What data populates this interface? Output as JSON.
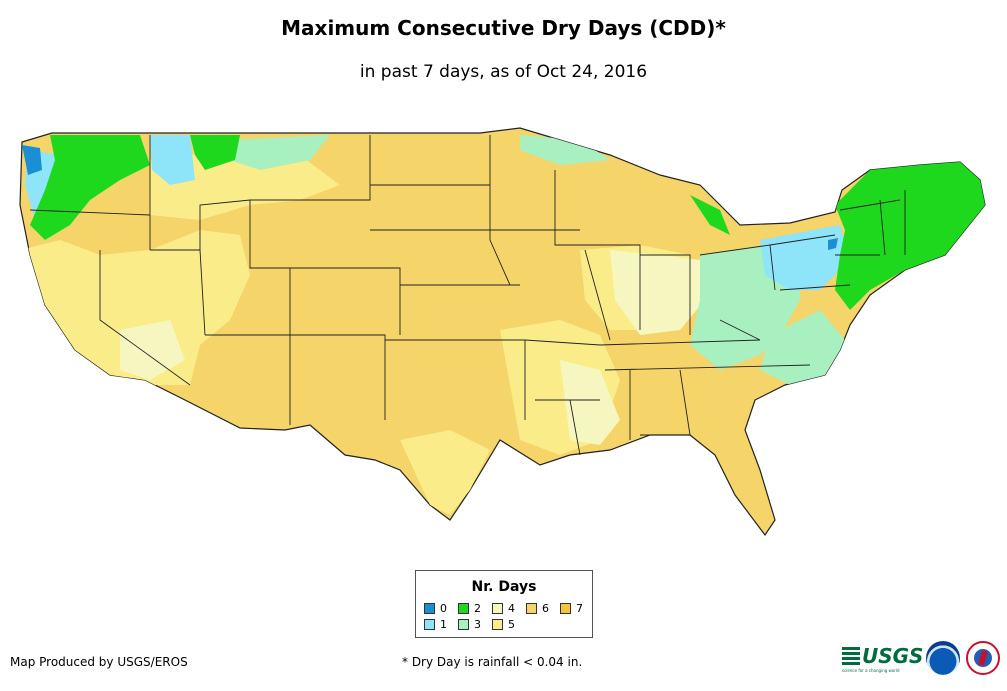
{
  "header": {
    "title": "Maximum Consecutive Dry Days (CDD)*",
    "subtitle": "in past 7 days, as of Oct 24, 2016"
  },
  "legend": {
    "title": "Nr. Days",
    "items": [
      {
        "label": "0",
        "color": "#1a8fd6"
      },
      {
        "label": "1",
        "color": "#8ee4f8"
      },
      {
        "label": "2",
        "color": "#1ed81e"
      },
      {
        "label": "3",
        "color": "#a8f0c0"
      },
      {
        "label": "4",
        "color": "#f6f6c0"
      },
      {
        "label": "5",
        "color": "#fbec8a"
      },
      {
        "label": "6",
        "color": "#f5d46a"
      },
      {
        "label": "7",
        "color": "#f3c43c"
      }
    ]
  },
  "footer": {
    "credit": "Map Produced by USGS/EROS",
    "note": "* Dry Day is rainfall < 0.04 in.",
    "logos": [
      "USGS",
      "NOAA",
      "National Weather Service"
    ],
    "usgs_tagline": "science for a changing world"
  },
  "map": {
    "region": "Contiguous United States",
    "base_color": "#f5d46a",
    "border_color": "#222222"
  }
}
